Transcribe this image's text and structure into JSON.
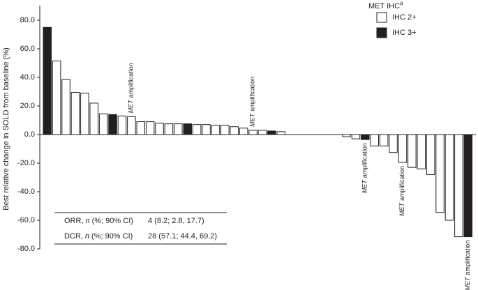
{
  "chart_data": {
    "type": "waterfall",
    "y_label": "Best relative change in SOLD from baseline (%)",
    "values": [
      75,
      51.5,
      38.5,
      29.5,
      29,
      22,
      14.5,
      14,
      13,
      12.5,
      9,
      9,
      8,
      7.5,
      7.5,
      7.5,
      7,
      7,
      6.5,
      6.5,
      5.5,
      4.5,
      3,
      3,
      2.5,
      2,
      0,
      0,
      0,
      0,
      0,
      0,
      -1.5,
      -3,
      -3.5,
      -8,
      -8,
      -12.5,
      -19.5,
      -23,
      -24,
      -28,
      -54.5,
      -60,
      -71.5,
      -71.5
    ],
    "groups": [
      1,
      0,
      0,
      0,
      0,
      0,
      0,
      1,
      0,
      0,
      0,
      0,
      0,
      0,
      0,
      1,
      0,
      0,
      0,
      0,
      0,
      0,
      0,
      0,
      1,
      0,
      0,
      0,
      0,
      0,
      0,
      0,
      0,
      0,
      1,
      0,
      0,
      0,
      0,
      0,
      0,
      0,
      0,
      0,
      0,
      1
    ],
    "legend_title": "MET IHC",
    "legend_title_sup": "a",
    "legend": [
      {
        "name": "IHC 2+",
        "color": "#ffffff"
      },
      {
        "name": "IHC 3+",
        "color": "#231f20"
      }
    ],
    "ylim": [
      -80,
      80
    ],
    "yticks": [
      {
        "value": -80,
        "label": "-80.0"
      },
      {
        "value": -60,
        "label": "-60.0"
      },
      {
        "value": -40,
        "label": "-40.0"
      },
      {
        "value": -20,
        "label": "-20.0"
      },
      {
        "value": 0,
        "label": "0.0"
      },
      {
        "value": 20,
        "label": "20.0"
      },
      {
        "value": 40,
        "label": "40.0"
      },
      {
        "value": 60,
        "label": "60.0"
      },
      {
        "value": 80,
        "label": "80.0"
      }
    ],
    "annotations": [
      {
        "bar": 9,
        "italic": "MET",
        "text": "amplification"
      },
      {
        "bar": 22,
        "italic": "MET",
        "text": "amplification"
      },
      {
        "bar": 34,
        "italic": "MET",
        "text": "amplification"
      },
      {
        "bar": 38,
        "italic": "MET",
        "text": "amplification"
      },
      {
        "bar": 45,
        "italic": "MET",
        "text": "amplification"
      }
    ],
    "table": [
      {
        "label": "ORR,",
        "italic": "n",
        "suffix": "(%; 90% CI)",
        "value": "4 (8.2; 2.8, 17.7)"
      },
      {
        "label": "DCR,",
        "italic": "n",
        "suffix": "(%; 90% CI)",
        "value": "28 (57.1; 44.4, 69.2)"
      }
    ]
  }
}
